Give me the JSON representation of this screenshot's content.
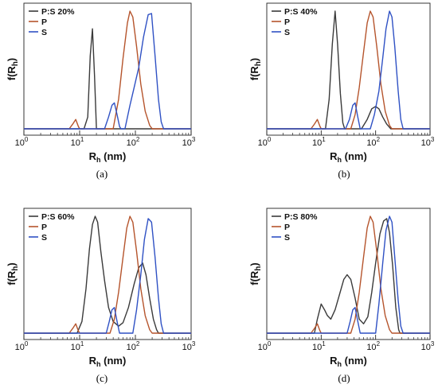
{
  "figure": {
    "colors": {
      "P:S": "#3a3a3a",
      "P": "#b5542c",
      "S": "#2f51c4"
    },
    "panel_labels": [
      "(a)",
      "(b)",
      "(c)",
      "(d)"
    ]
  },
  "chart_data": [
    {
      "type": "line",
      "ylabel": "f(Rh)",
      "xlabel": "Rh (nm)",
      "xscale": "log",
      "xlim": [
        1,
        1000
      ],
      "x_ticks": [
        "10^0",
        "10^1",
        "10^2",
        "10^3"
      ],
      "ylim": [
        0,
        1.05
      ],
      "legend": "top-left",
      "series": [
        {
          "name": "P:S 20%",
          "points": [
            [
              1,
              0
            ],
            [
              12,
              0
            ],
            [
              14,
              0.1
            ],
            [
              15.5,
              0.62
            ],
            [
              17,
              0.85
            ],
            [
              18.5,
              0.45
            ],
            [
              20,
              0
            ],
            [
              1000,
              0
            ]
          ]
        },
        {
          "name": "P",
          "points": [
            [
              1,
              0
            ],
            [
              6.5,
              0
            ],
            [
              7.5,
              0.04
            ],
            [
              8.5,
              0.08
            ],
            [
              9.5,
              0.02
            ],
            [
              10,
              0
            ],
            [
              40,
              0
            ],
            [
              50,
              0.25
            ],
            [
              60,
              0.6
            ],
            [
              72,
              0.9
            ],
            [
              80,
              1.0
            ],
            [
              90,
              0.95
            ],
            [
              105,
              0.7
            ],
            [
              125,
              0.38
            ],
            [
              150,
              0.15
            ],
            [
              180,
              0.03
            ],
            [
              200,
              0
            ],
            [
              1000,
              0
            ]
          ]
        },
        {
          "name": "S",
          "points": [
            [
              1,
              0
            ],
            [
              28,
              0
            ],
            [
              33,
              0.1
            ],
            [
              38,
              0.2
            ],
            [
              42,
              0.22
            ],
            [
              47,
              0.12
            ],
            [
              52,
              0.02
            ],
            [
              55,
              0
            ],
            [
              65,
              0
            ],
            [
              80,
              0.2
            ],
            [
              95,
              0.35
            ],
            [
              115,
              0.52
            ],
            [
              140,
              0.78
            ],
            [
              170,
              0.97
            ],
            [
              195,
              0.98
            ],
            [
              225,
              0.62
            ],
            [
              260,
              0.25
            ],
            [
              290,
              0.06
            ],
            [
              320,
              0
            ],
            [
              1000,
              0
            ]
          ]
        }
      ]
    },
    {
      "type": "line",
      "ylabel": "f(Rh)",
      "xlabel": "Rh (nm)",
      "xscale": "log",
      "xlim": [
        1,
        1000
      ],
      "x_ticks": [
        "10^0",
        "10^1",
        "10^2",
        "10^3"
      ],
      "ylim": [
        0,
        1.05
      ],
      "legend": "top-left",
      "series": [
        {
          "name": "P:S 40%",
          "points": [
            [
              1,
              0
            ],
            [
              12,
              0
            ],
            [
              14,
              0.25
            ],
            [
              16,
              0.72
            ],
            [
              18,
              1.0
            ],
            [
              20,
              0.72
            ],
            [
              22.5,
              0.3
            ],
            [
              25,
              0.05
            ],
            [
              27,
              0
            ],
            [
              55,
              0
            ],
            [
              70,
              0.08
            ],
            [
              85,
              0.17
            ],
            [
              100,
              0.19
            ],
            [
              115,
              0.17
            ],
            [
              135,
              0.1
            ],
            [
              160,
              0.04
            ],
            [
              190,
              0
            ],
            [
              1000,
              0
            ]
          ]
        },
        {
          "name": "P",
          "points": [
            [
              1,
              0
            ],
            [
              6.5,
              0
            ],
            [
              7.5,
              0.04
            ],
            [
              8.5,
              0.08
            ],
            [
              9.5,
              0.02
            ],
            [
              10,
              0
            ],
            [
              35,
              0
            ],
            [
              42,
              0.12
            ],
            [
              50,
              0.35
            ],
            [
              60,
              0.65
            ],
            [
              70,
              0.9
            ],
            [
              80,
              1.0
            ],
            [
              90,
              0.95
            ],
            [
              105,
              0.7
            ],
            [
              125,
              0.38
            ],
            [
              150,
              0.15
            ],
            [
              180,
              0.03
            ],
            [
              200,
              0
            ],
            [
              1000,
              0
            ]
          ]
        },
        {
          "name": "S",
          "points": [
            [
              1,
              0
            ],
            [
              28,
              0
            ],
            [
              33,
              0.08
            ],
            [
              38,
              0.2
            ],
            [
              42,
              0.22
            ],
            [
              47,
              0.1
            ],
            [
              52,
              0
            ],
            [
              80,
              0
            ],
            [
              95,
              0.12
            ],
            [
              115,
              0.32
            ],
            [
              135,
              0.6
            ],
            [
              155,
              0.85
            ],
            [
              180,
              1.0
            ],
            [
              200,
              0.95
            ],
            [
              225,
              0.7
            ],
            [
              260,
              0.32
            ],
            [
              290,
              0.08
            ],
            [
              320,
              0
            ],
            [
              1000,
              0
            ]
          ]
        }
      ]
    },
    {
      "type": "line",
      "ylabel": "f(Rh)",
      "xlabel": "Rh (nm)",
      "xscale": "log",
      "xlim": [
        1,
        1000
      ],
      "x_ticks": [
        "10^0",
        "10^1",
        "10^2",
        "10^3"
      ],
      "ylim": [
        0,
        1.05
      ],
      "legend": "top-left",
      "series": [
        {
          "name": "P:S 60%",
          "points": [
            [
              1,
              0
            ],
            [
              9,
              0
            ],
            [
              11,
              0.1
            ],
            [
              13,
              0.38
            ],
            [
              15,
              0.72
            ],
            [
              17,
              0.93
            ],
            [
              19,
              1.0
            ],
            [
              21,
              0.95
            ],
            [
              24,
              0.7
            ],
            [
              28,
              0.45
            ],
            [
              33,
              0.22
            ],
            [
              40,
              0.1
            ],
            [
              50,
              0.06
            ],
            [
              60,
              0.09
            ],
            [
              75,
              0.22
            ],
            [
              95,
              0.42
            ],
            [
              115,
              0.56
            ],
            [
              135,
              0.6
            ],
            [
              155,
              0.5
            ],
            [
              180,
              0.3
            ],
            [
              210,
              0.12
            ],
            [
              240,
              0.03
            ],
            [
              260,
              0
            ],
            [
              1000,
              0
            ]
          ]
        },
        {
          "name": "P",
          "points": [
            [
              1,
              0
            ],
            [
              6.5,
              0
            ],
            [
              7.5,
              0.04
            ],
            [
              8.5,
              0.08
            ],
            [
              9.5,
              0.02
            ],
            [
              10,
              0
            ],
            [
              35,
              0
            ],
            [
              42,
              0.12
            ],
            [
              50,
              0.35
            ],
            [
              60,
              0.65
            ],
            [
              70,
              0.9
            ],
            [
              80,
              1.0
            ],
            [
              90,
              0.95
            ],
            [
              105,
              0.7
            ],
            [
              125,
              0.38
            ],
            [
              150,
              0.15
            ],
            [
              180,
              0.03
            ],
            [
              200,
              0
            ],
            [
              1000,
              0
            ]
          ]
        },
        {
          "name": "S",
          "points": [
            [
              1,
              0
            ],
            [
              30,
              0
            ],
            [
              34,
              0.1
            ],
            [
              38,
              0.2
            ],
            [
              42,
              0.22
            ],
            [
              47,
              0.1
            ],
            [
              52,
              0
            ],
            [
              90,
              0
            ],
            [
              105,
              0.2
            ],
            [
              125,
              0.5
            ],
            [
              145,
              0.8
            ],
            [
              170,
              0.98
            ],
            [
              195,
              0.95
            ],
            [
              225,
              0.65
            ],
            [
              260,
              0.3
            ],
            [
              290,
              0.08
            ],
            [
              320,
              0
            ],
            [
              1000,
              0
            ]
          ]
        }
      ]
    },
    {
      "type": "line",
      "ylabel": "f(Rh)",
      "xlabel": "Rh (nm)",
      "xscale": "log",
      "xlim": [
        1,
        1000
      ],
      "x_ticks": [
        "10^0",
        "10^1",
        "10^2",
        "10^3"
      ],
      "ylim": [
        0,
        1.05
      ],
      "legend": "top-left",
      "series": [
        {
          "name": "P:S 80%",
          "points": [
            [
              1,
              0
            ],
            [
              7.5,
              0
            ],
            [
              8.5,
              0.12
            ],
            [
              10,
              0.25
            ],
            [
              11.5,
              0.2
            ],
            [
              13,
              0.15
            ],
            [
              15,
              0.12
            ],
            [
              18,
              0.2
            ],
            [
              22,
              0.34
            ],
            [
              26,
              0.46
            ],
            [
              30,
              0.5
            ],
            [
              35,
              0.46
            ],
            [
              42,
              0.3
            ],
            [
              50,
              0.12
            ],
            [
              60,
              0.08
            ],
            [
              72,
              0.14
            ],
            [
              85,
              0.35
            ],
            [
              100,
              0.6
            ],
            [
              120,
              0.85
            ],
            [
              140,
              0.96
            ],
            [
              160,
              0.98
            ],
            [
              180,
              0.86
            ],
            [
              205,
              0.58
            ],
            [
              235,
              0.22
            ],
            [
              265,
              0.03
            ],
            [
              280,
              0
            ],
            [
              1000,
              0
            ]
          ]
        },
        {
          "name": "P",
          "points": [
            [
              1,
              0
            ],
            [
              6.5,
              0
            ],
            [
              7.5,
              0.04
            ],
            [
              8.5,
              0.08
            ],
            [
              9.5,
              0.02
            ],
            [
              10,
              0
            ],
            [
              35,
              0
            ],
            [
              42,
              0.12
            ],
            [
              50,
              0.35
            ],
            [
              60,
              0.65
            ],
            [
              70,
              0.9
            ],
            [
              80,
              1.0
            ],
            [
              90,
              0.95
            ],
            [
              105,
              0.7
            ],
            [
              125,
              0.38
            ],
            [
              150,
              0.15
            ],
            [
              180,
              0.03
            ],
            [
              200,
              0
            ],
            [
              1000,
              0
            ]
          ]
        },
        {
          "name": "S",
          "points": [
            [
              1,
              0
            ],
            [
              30,
              0
            ],
            [
              34,
              0.1
            ],
            [
              38,
              0.2
            ],
            [
              42,
              0.22
            ],
            [
              47,
              0.1
            ],
            [
              52,
              0
            ],
            [
              100,
              0
            ],
            [
              115,
              0.25
            ],
            [
              135,
              0.6
            ],
            [
              155,
              0.88
            ],
            [
              180,
              1.0
            ],
            [
              200,
              0.95
            ],
            [
              225,
              0.65
            ],
            [
              260,
              0.28
            ],
            [
              290,
              0.06
            ],
            [
              320,
              0
            ],
            [
              1000,
              0
            ]
          ]
        }
      ]
    }
  ]
}
